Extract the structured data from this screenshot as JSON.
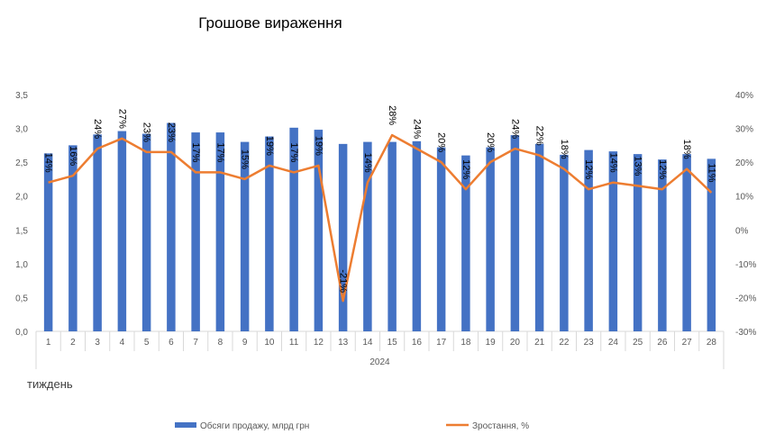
{
  "chart_data": {
    "type": "bar",
    "title": "Грошове вираження",
    "group_label": "2024",
    "xlabel": "тиждень",
    "categories": [
      "1",
      "2",
      "3",
      "4",
      "5",
      "6",
      "7",
      "8",
      "9",
      "10",
      "11",
      "12",
      "13",
      "14",
      "15",
      "16",
      "17",
      "18",
      "19",
      "20",
      "21",
      "22",
      "23",
      "24",
      "25",
      "26",
      "27",
      "28"
    ],
    "ylim": [
      0,
      3.5
    ],
    "y2lim": [
      -0.3,
      0.4
    ],
    "y_ticks": [
      "0,0",
      "0,5",
      "1,0",
      "1,5",
      "2,0",
      "2,5",
      "3,0",
      "3,5"
    ],
    "y2_ticks": [
      "-30%",
      "-20%",
      "-10%",
      "0%",
      "10%",
      "20%",
      "30%",
      "40%"
    ],
    "series": [
      {
        "name": "Обсяги продажу, млрд грн",
        "type": "bar",
        "axis": "left",
        "color": "#4472C4",
        "values": [
          2.63,
          2.75,
          2.91,
          2.96,
          2.92,
          3.08,
          2.94,
          2.94,
          2.8,
          2.88,
          3.01,
          2.98,
          2.77,
          2.8,
          2.8,
          2.81,
          2.72,
          2.6,
          2.72,
          2.9,
          2.77,
          2.61,
          2.68,
          2.66,
          2.62,
          2.54,
          2.62,
          2.55
        ]
      },
      {
        "name": "Зростання, %",
        "type": "line",
        "axis": "right",
        "color": "#ED7D31",
        "values": [
          0.14,
          0.16,
          0.24,
          0.27,
          0.23,
          0.23,
          0.17,
          0.17,
          0.15,
          0.19,
          0.17,
          0.19,
          -0.21,
          0.14,
          0.28,
          0.24,
          0.2,
          0.12,
          0.2,
          0.24,
          0.22,
          0.18,
          0.12,
          0.14,
          0.13,
          0.12,
          0.18,
          0.11
        ],
        "labels": [
          "14%",
          "16%",
          "24%",
          "27%",
          "23%",
          "23%",
          "17%",
          "17%",
          "15%",
          "19%",
          "17%",
          "19%",
          "-21%",
          "14%",
          "28%",
          "24%",
          "20%",
          "12%",
          "20%",
          "24%",
          "22%",
          "18%",
          "12%",
          "14%",
          "13%",
          "12%",
          "18%",
          "11%"
        ]
      }
    ],
    "legend": [
      "Обсяги продажу, млрд грн",
      "Зростання, %"
    ],
    "legend_position": "bottom",
    "grid": false
  }
}
